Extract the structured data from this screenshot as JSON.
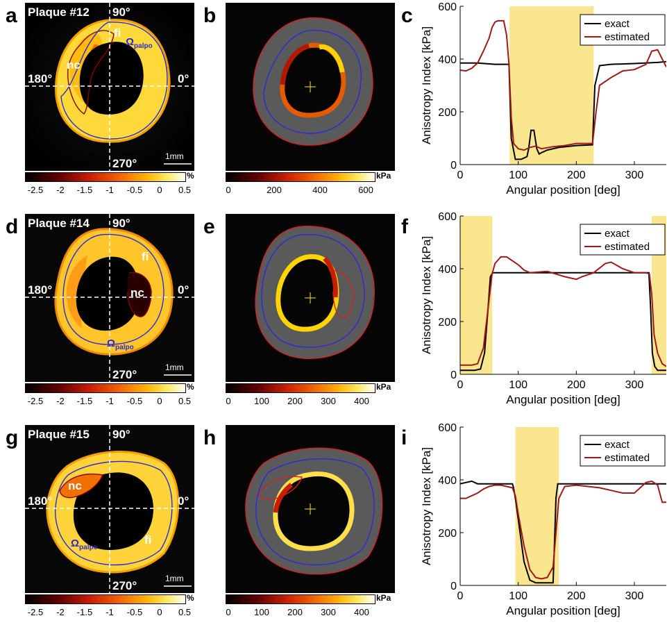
{
  "rows": [
    {
      "map_letter": "a",
      "us_letter": "b",
      "chart_letter": "c",
      "plaque_title": "Plaque #12",
      "angle_90": "90°",
      "angle_180": "180°",
      "angle_0": "0°",
      "angle_270": "270°",
      "label_fi": "fi",
      "label_nc": "nc",
      "label_omega": "Ω",
      "label_omega_sub": "palpo",
      "scale_bar": "1mm",
      "strain_cbar": {
        "ticks": [
          "-2.5",
          "-2",
          "-1.5",
          "-1",
          "-0.5",
          "0",
          "0.5"
        ],
        "unit": "%"
      },
      "modulus_cbar": {
        "ticks": [
          "0",
          "200",
          "400",
          "600"
        ],
        "unit": "kPa"
      }
    },
    {
      "map_letter": "d",
      "us_letter": "e",
      "chart_letter": "f",
      "plaque_title": "Plaque #14",
      "angle_90": "90°",
      "angle_180": "180°",
      "angle_0": "0°",
      "angle_270": "270°",
      "label_fi": "fi",
      "label_nc": "nc",
      "label_omega": "Ω",
      "label_omega_sub": "palpo",
      "scale_bar": "1mm",
      "strain_cbar": {
        "ticks": [
          "-2.5",
          "-2",
          "-1.5",
          "-1",
          "-0.5",
          "0",
          "0.5"
        ],
        "unit": "%"
      },
      "modulus_cbar": {
        "ticks": [
          "0",
          "100",
          "200",
          "300",
          "400"
        ],
        "unit": "kPa"
      }
    },
    {
      "map_letter": "g",
      "us_letter": "h",
      "chart_letter": "i",
      "plaque_title": "Plaque #15",
      "angle_90": "90°",
      "angle_180": "180°",
      "angle_0": "0°",
      "angle_270": "270°",
      "label_fi": "fi",
      "label_nc": "nc",
      "label_omega": "Ω",
      "label_omega_sub": "palpo",
      "scale_bar": "1mm",
      "strain_cbar": {
        "ticks": [
          "-2.5",
          "-2",
          "-1.5",
          "-1",
          "-0.5",
          "0",
          "0.5"
        ],
        "unit": "%"
      },
      "modulus_cbar": {
        "ticks": [
          "0",
          "100",
          "200",
          "300",
          "400"
        ],
        "unit": "kPa"
      }
    }
  ],
  "colors": {
    "exact": "#000000",
    "estimated": "#a01818",
    "highlight": "#fbe690",
    "omega_contour": "#2b2bd6",
    "vessel_contour": "#d42020"
  },
  "chart_data": [
    {
      "type": "line",
      "xlabel": "Angular position [deg]",
      "ylabel": "Anisotropy Index [kPa]",
      "xlim": [
        0,
        355
      ],
      "ylim": [
        0,
        600
      ],
      "xticks": [
        "0",
        "100",
        "200",
        "300"
      ],
      "yticks": [
        "0",
        "200",
        "400",
        "600"
      ],
      "legend": {
        "position": "top-right",
        "entries": [
          "exact",
          "estimated"
        ]
      },
      "highlight_ranges": [
        [
          85,
          230
        ]
      ],
      "series": [
        {
          "name": "exact",
          "x": [
            0,
            30,
            60,
            84,
            88,
            95,
            105,
            115,
            118,
            122,
            127,
            132,
            136,
            140,
            150,
            170,
            200,
            228,
            232,
            240,
            260,
            300,
            340,
            355
          ],
          "y": [
            385,
            385,
            380,
            380,
            100,
            20,
            20,
            30,
            60,
            130,
            130,
            60,
            40,
            45,
            55,
            65,
            72,
            75,
            300,
            375,
            380,
            383,
            387,
            390
          ]
        },
        {
          "name": "estimated",
          "x": [
            0,
            10,
            20,
            30,
            40,
            50,
            55,
            60,
            65,
            70,
            75,
            80,
            84,
            88,
            92,
            100,
            110,
            120,
            130,
            140,
            160,
            180,
            200,
            220,
            228,
            234,
            240,
            260,
            280,
            300,
            320,
            330,
            340,
            348,
            355
          ],
          "y": [
            358,
            355,
            365,
            385,
            430,
            480,
            520,
            540,
            545,
            545,
            545,
            490,
            380,
            180,
            80,
            60,
            55,
            65,
            70,
            60,
            68,
            72,
            80,
            80,
            80,
            200,
            300,
            330,
            355,
            360,
            380,
            430,
            435,
            400,
            370
          ]
        }
      ]
    },
    {
      "type": "line",
      "xlabel": "Angular position [deg]",
      "ylabel": "Anisotropy Index [kPa]",
      "xlim": [
        0,
        355
      ],
      "ylim": [
        0,
        600
      ],
      "xticks": [
        "0",
        "100",
        "200",
        "300"
      ],
      "yticks": [
        "0",
        "200",
        "400",
        "600"
      ],
      "legend": {
        "position": "top-right",
        "entries": [
          "exact",
          "estimated"
        ]
      },
      "highlight_ranges": [
        [
          0,
          55
        ],
        [
          330,
          355
        ]
      ],
      "series": [
        {
          "name": "exact",
          "x": [
            0,
            25,
            35,
            42,
            48,
            52,
            56,
            60,
            100,
            150,
            200,
            250,
            300,
            325,
            328,
            331,
            335,
            340,
            355
          ],
          "y": [
            15,
            15,
            20,
            80,
            250,
            370,
            385,
            385,
            385,
            385,
            385,
            385,
            385,
            385,
            250,
            80,
            30,
            15,
            15
          ]
        },
        {
          "name": "estimated",
          "x": [
            0,
            20,
            30,
            40,
            48,
            55,
            60,
            70,
            80,
            90,
            100,
            110,
            120,
            150,
            180,
            200,
            210,
            230,
            250,
            260,
            280,
            300,
            320,
            326,
            330,
            334,
            340,
            348,
            355
          ],
          "y": [
            35,
            35,
            40,
            100,
            250,
            380,
            420,
            445,
            445,
            430,
            415,
            395,
            385,
            390,
            370,
            360,
            370,
            385,
            420,
            425,
            400,
            385,
            385,
            380,
            300,
            150,
            80,
            40,
            30
          ]
        }
      ]
    },
    {
      "type": "line",
      "xlabel": "Angular position [deg]",
      "ylabel": "Anisotropy Index [kPa]",
      "xlim": [
        0,
        355
      ],
      "ylim": [
        0,
        600
      ],
      "xticks": [
        "0",
        "100",
        "200",
        "300"
      ],
      "yticks": [
        "0",
        "200",
        "400",
        "600"
      ],
      "legend": {
        "position": "top-right",
        "entries": [
          "exact",
          "estimated"
        ]
      },
      "highlight_ranges": [
        [
          95,
          170
        ]
      ],
      "series": [
        {
          "name": "exact",
          "x": [
            0,
            10,
            20,
            30,
            50,
            70,
            90,
            92,
            95,
            100,
            110,
            120,
            130,
            150,
            160,
            163,
            165,
            168,
            175,
            200,
            250,
            300,
            355
          ],
          "y": [
            385,
            390,
            395,
            385,
            385,
            385,
            385,
            370,
            330,
            250,
            90,
            20,
            10,
            10,
            10,
            200,
            330,
            385,
            385,
            385,
            385,
            385,
            385
          ]
        },
        {
          "name": "estimated",
          "x": [
            0,
            10,
            20,
            30,
            40,
            50,
            60,
            70,
            80,
            90,
            95,
            100,
            110,
            120,
            130,
            140,
            150,
            160,
            165,
            170,
            180,
            200,
            220,
            240,
            260,
            280,
            300,
            320,
            330,
            340,
            348,
            355
          ],
          "y": [
            330,
            330,
            340,
            350,
            365,
            375,
            380,
            380,
            375,
            370,
            340,
            270,
            150,
            60,
            30,
            25,
            30,
            70,
            200,
            330,
            375,
            380,
            375,
            370,
            360,
            350,
            350,
            390,
            395,
            380,
            315,
            315
          ]
        }
      ]
    }
  ]
}
